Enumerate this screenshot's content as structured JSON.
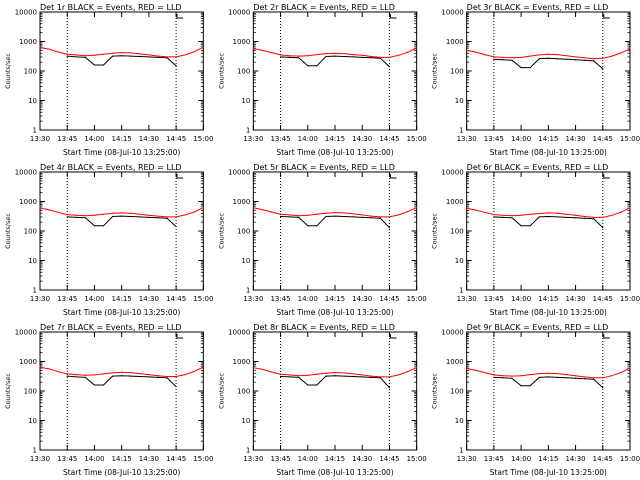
{
  "chart_data": [
    {
      "type": "line",
      "title": "Det 1r BLACK = Events, RED = LLD",
      "xlabel": "Start Time (08-Jul-10 13:25:00)",
      "ylabel": "Counts/sec",
      "x": [
        "13:30",
        "13:35",
        "13:40",
        "13:45",
        "13:50",
        "13:55",
        "14:00",
        "14:05",
        "14:10",
        "14:15",
        "14:20",
        "14:25",
        "14:30",
        "14:35",
        "14:40",
        "14:45",
        "14:50",
        "14:55",
        "15:00"
      ],
      "series": [
        {
          "name": "Events",
          "color": "#000000",
          "values": [
            null,
            null,
            null,
            320,
            300,
            290,
            160,
            160,
            320,
            330,
            320,
            310,
            300,
            290,
            280,
            150,
            null,
            null,
            null
          ]
        },
        {
          "name": "LLD",
          "color": "#ff0000",
          "values": [
            630,
            550,
            440,
            370,
            350,
            330,
            340,
            370,
            400,
            420,
            410,
            380,
            350,
            320,
            300,
            300,
            350,
            450,
            640
          ]
        }
      ]
    },
    {
      "type": "line",
      "title": "Det 2r BLACK = Events, RED = LLD",
      "xlabel": "Start Time (08-Jul-10 13:25:00)",
      "ylabel": "Counts/sec",
      "x": [
        "13:30",
        "13:35",
        "13:40",
        "13:45",
        "13:50",
        "13:55",
        "14:00",
        "14:05",
        "14:10",
        "14:15",
        "14:20",
        "14:25",
        "14:30",
        "14:35",
        "14:40",
        "14:45",
        "14:50",
        "14:55",
        "15:00"
      ],
      "series": [
        {
          "name": "Events",
          "color": "#000000",
          "values": [
            null,
            null,
            null,
            300,
            290,
            280,
            150,
            150,
            310,
            320,
            310,
            300,
            290,
            280,
            270,
            140,
            null,
            null,
            null
          ]
        },
        {
          "name": "LLD",
          "color": "#ff0000",
          "values": [
            580,
            500,
            420,
            350,
            330,
            320,
            330,
            360,
            390,
            400,
            390,
            360,
            340,
            310,
            290,
            290,
            340,
            430,
            600
          ]
        }
      ]
    },
    {
      "type": "line",
      "title": "Det 3r BLACK = Events, RED = LLD",
      "xlabel": "Start Time (08-Jul-10 13:25:00)",
      "ylabel": "Counts/sec",
      "x": [
        "13:30",
        "13:35",
        "13:40",
        "13:45",
        "13:50",
        "13:55",
        "14:00",
        "14:05",
        "14:10",
        "14:15",
        "14:20",
        "14:25",
        "14:30",
        "14:35",
        "14:40",
        "14:45",
        "14:50",
        "14:55",
        "15:00"
      ],
      "series": [
        {
          "name": "Events",
          "color": "#000000",
          "values": [
            null,
            null,
            null,
            250,
            240,
            230,
            130,
            130,
            260,
            270,
            260,
            250,
            240,
            230,
            220,
            120,
            null,
            null,
            null
          ]
        },
        {
          "name": "LLD",
          "color": "#ff0000",
          "values": [
            500,
            440,
            360,
            300,
            290,
            280,
            290,
            320,
            350,
            370,
            360,
            330,
            300,
            280,
            260,
            270,
            320,
            410,
            560
          ]
        }
      ]
    },
    {
      "type": "line",
      "title": "Det 4r BLACK = Events, RED = LLD",
      "xlabel": "Start Time (08-Jul-10 13:25:00)",
      "ylabel": "Counts/sec",
      "x": [
        "13:30",
        "13:35",
        "13:40",
        "13:45",
        "13:50",
        "13:55",
        "14:00",
        "14:05",
        "14:10",
        "14:15",
        "14:20",
        "14:25",
        "14:30",
        "14:35",
        "14:40",
        "14:45",
        "14:50",
        "14:55",
        "15:00"
      ],
      "series": [
        {
          "name": "Events",
          "color": "#000000",
          "values": [
            null,
            null,
            null,
            300,
            290,
            280,
            150,
            150,
            310,
            320,
            310,
            300,
            290,
            280,
            270,
            140,
            null,
            null,
            null
          ]
        },
        {
          "name": "LLD",
          "color": "#ff0000",
          "values": [
            600,
            520,
            430,
            360,
            340,
            330,
            340,
            370,
            400,
            410,
            400,
            370,
            340,
            320,
            300,
            300,
            350,
            440,
            620
          ]
        }
      ]
    },
    {
      "type": "line",
      "title": "Det 5r BLACK = Events, RED = LLD",
      "xlabel": "Start Time (08-Jul-10 13:25:00)",
      "ylabel": "Counts/sec",
      "x": [
        "13:30",
        "13:35",
        "13:40",
        "13:45",
        "13:50",
        "13:55",
        "14:00",
        "14:05",
        "14:10",
        "14:15",
        "14:20",
        "14:25",
        "14:30",
        "14:35",
        "14:40",
        "14:45",
        "14:50",
        "14:55",
        "15:00"
      ],
      "series": [
        {
          "name": "Events",
          "color": "#000000",
          "values": [
            null,
            null,
            null,
            310,
            300,
            290,
            150,
            150,
            310,
            320,
            310,
            300,
            290,
            280,
            270,
            130,
            null,
            null,
            null
          ]
        },
        {
          "name": "LLD",
          "color": "#ff0000",
          "values": [
            610,
            530,
            440,
            370,
            350,
            330,
            340,
            370,
            400,
            420,
            410,
            380,
            350,
            320,
            300,
            300,
            350,
            450,
            630
          ]
        }
      ]
    },
    {
      "type": "line",
      "title": "Det 6r BLACK = Events, RED = LLD",
      "xlabel": "Start Time (08-Jul-10 13:25:00)",
      "ylabel": "Counts/sec",
      "x": [
        "13:30",
        "13:35",
        "13:40",
        "13:45",
        "13:50",
        "13:55",
        "14:00",
        "14:05",
        "14:10",
        "14:15",
        "14:20",
        "14:25",
        "14:30",
        "14:35",
        "14:40",
        "14:45",
        "14:50",
        "14:55",
        "15:00"
      ],
      "series": [
        {
          "name": "Events",
          "color": "#000000",
          "values": [
            null,
            null,
            null,
            300,
            290,
            280,
            150,
            150,
            300,
            310,
            300,
            290,
            280,
            270,
            260,
            130,
            null,
            null,
            null
          ]
        },
        {
          "name": "LLD",
          "color": "#ff0000",
          "values": [
            590,
            510,
            430,
            360,
            340,
            330,
            340,
            370,
            390,
            410,
            400,
            370,
            340,
            310,
            290,
            290,
            340,
            430,
            610
          ]
        }
      ]
    },
    {
      "type": "line",
      "title": "Det 7r BLACK = Events, RED = LLD",
      "xlabel": "Start Time (08-Jul-10 13:25:00)",
      "ylabel": "Counts/sec",
      "x": [
        "13:30",
        "13:35",
        "13:40",
        "13:45",
        "13:50",
        "13:55",
        "14:00",
        "14:05",
        "14:10",
        "14:15",
        "14:20",
        "14:25",
        "14:30",
        "14:35",
        "14:40",
        "14:45",
        "14:50",
        "14:55",
        "15:00"
      ],
      "series": [
        {
          "name": "Events",
          "color": "#000000",
          "values": [
            null,
            null,
            null,
            320,
            300,
            290,
            160,
            160,
            320,
            330,
            320,
            310,
            300,
            290,
            280,
            140,
            null,
            null,
            null
          ]
        },
        {
          "name": "LLD",
          "color": "#ff0000",
          "values": [
            640,
            560,
            450,
            380,
            360,
            340,
            350,
            380,
            410,
            430,
            420,
            390,
            360,
            330,
            310,
            310,
            360,
            460,
            650
          ]
        }
      ]
    },
    {
      "type": "line",
      "title": "Det 8r BLACK = Events, RED = LLD",
      "xlabel": "Start Time (08-Jul-10 13:25:00)",
      "ylabel": "Counts/sec",
      "x": [
        "13:30",
        "13:35",
        "13:40",
        "13:45",
        "13:50",
        "13:55",
        "14:00",
        "14:05",
        "14:10",
        "14:15",
        "14:20",
        "14:25",
        "14:30",
        "14:35",
        "14:40",
        "14:45",
        "14:50",
        "14:55",
        "15:00"
      ],
      "series": [
        {
          "name": "Events",
          "color": "#000000",
          "values": [
            null,
            null,
            null,
            310,
            300,
            290,
            160,
            160,
            320,
            330,
            320,
            310,
            300,
            290,
            280,
            130,
            null,
            null,
            null
          ]
        },
        {
          "name": "LLD",
          "color": "#ff0000",
          "values": [
            620,
            540,
            440,
            370,
            350,
            330,
            340,
            370,
            400,
            420,
            410,
            380,
            350,
            320,
            300,
            300,
            350,
            450,
            630
          ]
        }
      ]
    },
    {
      "type": "line",
      "title": "Det 9r BLACK = Events, RED = LLD",
      "xlabel": "Start Time (08-Jul-10 13:25:00)",
      "ylabel": "Counts/sec",
      "x": [
        "13:30",
        "13:35",
        "13:40",
        "13:45",
        "13:50",
        "13:55",
        "14:00",
        "14:05",
        "14:10",
        "14:15",
        "14:20",
        "14:25",
        "14:30",
        "14:35",
        "14:40",
        "14:45",
        "14:50",
        "14:55",
        "15:00"
      ],
      "series": [
        {
          "name": "Events",
          "color": "#000000",
          "values": [
            null,
            null,
            null,
            290,
            280,
            270,
            150,
            150,
            290,
            300,
            290,
            280,
            270,
            260,
            250,
            130,
            null,
            null,
            null
          ]
        },
        {
          "name": "LLD",
          "color": "#ff0000",
          "values": [
            580,
            500,
            420,
            350,
            330,
            320,
            330,
            360,
            390,
            400,
            390,
            360,
            330,
            300,
            280,
            280,
            330,
            420,
            600
          ]
        }
      ]
    }
  ],
  "axes": {
    "y_scale": "log",
    "ylim": [
      1,
      10000
    ],
    "y_ticks": [
      1,
      10,
      100,
      1000,
      10000
    ],
    "y_tick_labels": [
      "1",
      "10",
      "100",
      "1000",
      "10000"
    ],
    "x_tick_labels": [
      "13:30",
      "13:45",
      "14:00",
      "14:15",
      "14:30",
      "14:45",
      "15:00"
    ],
    "vertical_markers": [
      "13:45",
      "14:45"
    ]
  }
}
